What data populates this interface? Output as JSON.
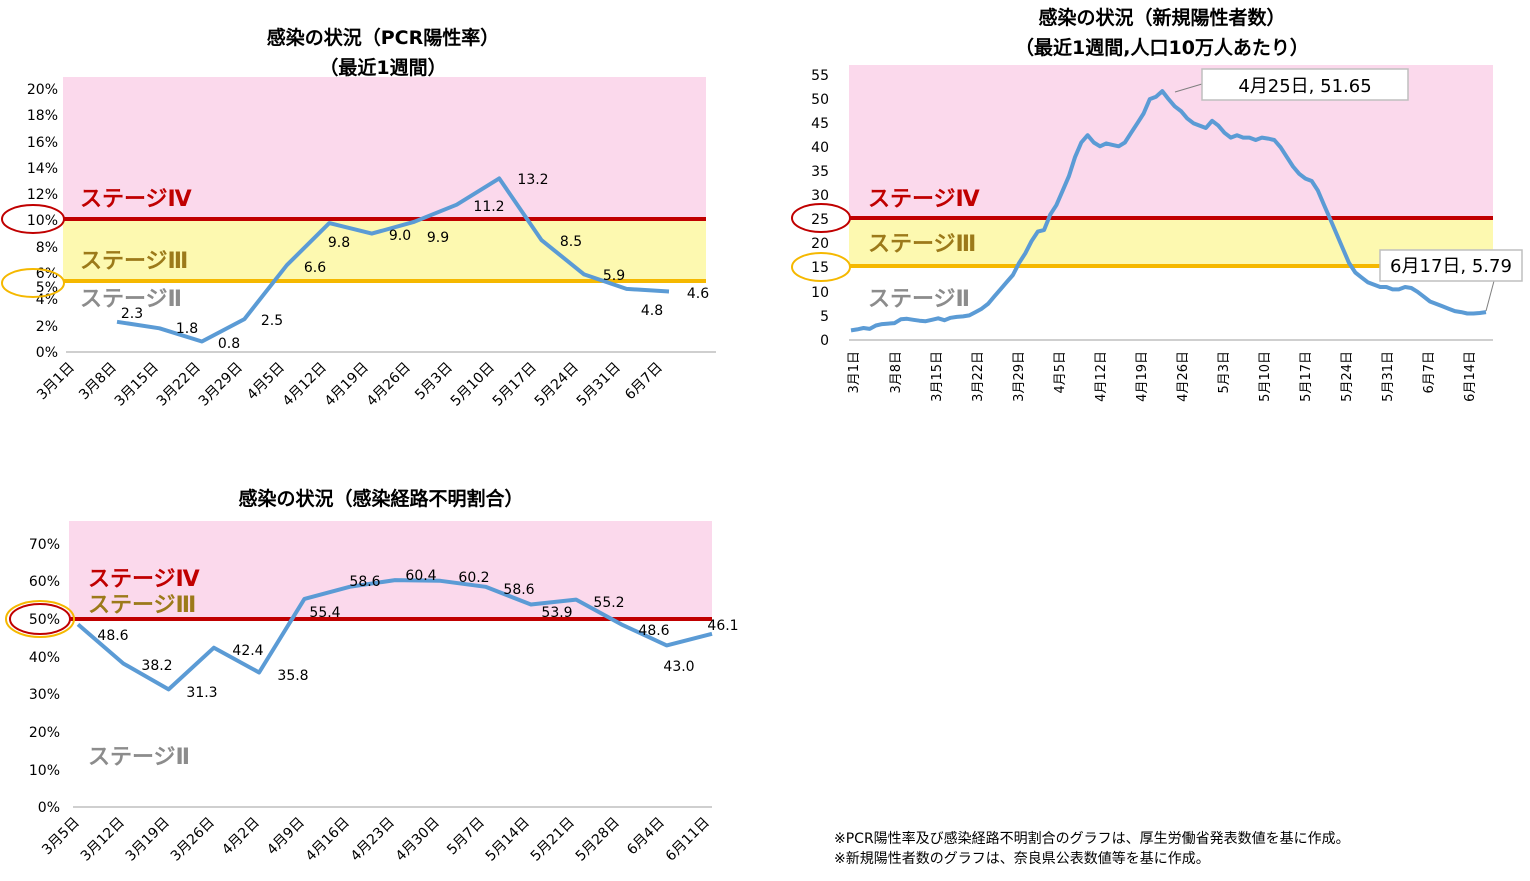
{
  "charts": {
    "pcr": {
      "title_line1": "感染の状況（PCR陽性率）",
      "title_line2": "（最近1週間）",
      "y_ticks": [
        "0%",
        "2%",
        "4%",
        "5%",
        "6%",
        "8%",
        "10%",
        "12%",
        "14%",
        "16%",
        "18%",
        "20%"
      ],
      "x_ticks": [
        "3月1日",
        "3月8日",
        "3月15日",
        "3月22日",
        "3月29日",
        "4月5日",
        "4月12日",
        "4月19日",
        "4月26日",
        "5月3日",
        "5月10日",
        "5月17日",
        "5月24日",
        "5月31日",
        "6月7日"
      ],
      "stage_labels": {
        "s4": "ステージⅣ",
        "s3": "ステージⅢ",
        "s2": "ステージⅡ"
      },
      "data_labels": [
        "2.3",
        "1.8",
        "0.8",
        "2.5",
        "6.6",
        "9.8",
        "9.0",
        "9.9",
        "11.2",
        "13.2",
        "8.5",
        "5.9",
        "4.8",
        "4.6"
      ]
    },
    "cases": {
      "title_line1": "感染の状況（新規陽性者数）",
      "title_line2": "（最近1週間,人口10万人あたり）",
      "y_ticks": [
        "0",
        "5",
        "10",
        "15",
        "20",
        "25",
        "30",
        "35",
        "40",
        "45",
        "50",
        "55"
      ],
      "x_ticks": [
        "3月1日",
        "3月8日",
        "3月15日",
        "3月22日",
        "3月29日",
        "4月5日",
        "4月12日",
        "4月19日",
        "4月26日",
        "5月3日",
        "5月10日",
        "5月17日",
        "5月24日",
        "5月31日",
        "6月7日",
        "6月14日"
      ],
      "stage_labels": {
        "s4": "ステージⅣ",
        "s3": "ステージⅢ",
        "s2": "ステージⅡ"
      },
      "callouts": {
        "peak": "4月25日, 51.65",
        "last": "6月17日, 5.79"
      }
    },
    "unknown": {
      "title": "感染の状況（感染経路不明割合）",
      "y_ticks": [
        "0%",
        "10%",
        "20%",
        "30%",
        "40%",
        "50%",
        "60%",
        "70%"
      ],
      "x_ticks": [
        "3月5日",
        "3月12日",
        "3月19日",
        "3月26日",
        "4月2日",
        "4月9日",
        "4月16日",
        "4月23日",
        "4月30日",
        "5月7日",
        "5月14日",
        "5月21日",
        "5月28日",
        "6月4日",
        "6月11日"
      ],
      "stage_labels": {
        "s4": "ステージⅣ",
        "s3": "ステージⅢ",
        "s2": "ステージⅡ"
      },
      "data_labels": [
        "48.6",
        "38.2",
        "31.3",
        "42.4",
        "35.8",
        "55.4",
        "58.6",
        "60.4",
        "60.2",
        "58.6",
        "53.9",
        "55.2",
        "48.6",
        "43.0",
        "46.1"
      ]
    }
  },
  "footnotes": {
    "line1": "※PCR陽性率及び感染経路不明割合のグラフは、厚生労働省発表数値を基に作成。",
    "line2": "※新規陽性者数のグラフは、奈良県公表数値等を基に作成。"
  },
  "colors": {
    "stage4_band": "#fbd9ec",
    "stage3_band": "#fdf9b0",
    "stage4_line": "#c00000",
    "stage3_line": "#f5b800",
    "stage4_text": "#c00000",
    "stage3_text": "#9c7a1a",
    "stage2_text": "#8c8c8c",
    "series": "#5b9bd5"
  },
  "chart_data": [
    {
      "type": "line",
      "title": "感染の状況（PCR陽性率）（最近1週間）",
      "categories": [
        "3月8日",
        "3月15日",
        "3月22日",
        "3月29日",
        "4月5日",
        "4月12日",
        "4月19日",
        "4月26日",
        "5月3日",
        "5月10日",
        "5月17日",
        "5月24日",
        "5月31日",
        "6月7日"
      ],
      "values": [
        2.3,
        1.8,
        0.8,
        2.5,
        6.6,
        9.8,
        9.0,
        9.9,
        11.2,
        13.2,
        8.5,
        5.9,
        4.8,
        4.6
      ],
      "ylim": [
        0,
        20
      ],
      "thresholds": {
        "stage4": 10,
        "stage3": 5
      },
      "xlabel": "",
      "ylabel": ""
    },
    {
      "type": "line",
      "title": "感染の状況（新規陽性者数）（最近1週間,人口10万人あたり）",
      "x_start": "3月1日",
      "x_end": "6月17日",
      "values": [
        2,
        2.2,
        2.5,
        2.3,
        3,
        3.3,
        3.4,
        3.5,
        4.3,
        4.4,
        4.2,
        4,
        3.9,
        4.2,
        4.5,
        4.1,
        4.6,
        4.8,
        4.9,
        5.1,
        5.8,
        6.5,
        7.5,
        9,
        10.5,
        12,
        13.5,
        16,
        18,
        20.5,
        22.5,
        22.8,
        26,
        28,
        31,
        34,
        38,
        41,
        42.5,
        41,
        40.2,
        40.8,
        40.5,
        40.2,
        41,
        43,
        45,
        47,
        50,
        50.5,
        51.65,
        50,
        48.5,
        47.5,
        46,
        45,
        44.5,
        44,
        45.5,
        44.5,
        43,
        42,
        42.5,
        42,
        42,
        41.5,
        42,
        41.8,
        41.5,
        40,
        38,
        36,
        34.5,
        33.5,
        33,
        31,
        28,
        25,
        22,
        19,
        16,
        14,
        13,
        12,
        11.5,
        11,
        11,
        10.5,
        10.5,
        11,
        10.8,
        10,
        9,
        8,
        7.5,
        7,
        6.5,
        6,
        5.8,
        5.5,
        5.5,
        5.6,
        5.79
      ],
      "ylim": [
        0,
        55
      ],
      "thresholds": {
        "stage4": 25,
        "stage3": 15
      },
      "annotations": [
        {
          "text": "4月25日, 51.65",
          "x": "4月25日",
          "y": 51.65
        },
        {
          "text": "6月17日, 5.79",
          "x": "6月17日",
          "y": 5.79
        }
      ],
      "xlabel": "",
      "ylabel": ""
    },
    {
      "type": "line",
      "title": "感染の状況（感染経路不明割合）",
      "categories": [
        "3月5日",
        "3月12日",
        "3月19日",
        "3月26日",
        "4月2日",
        "4月9日",
        "4月16日",
        "4月23日",
        "4月30日",
        "5月7日",
        "5月14日",
        "5月21日",
        "5月28日",
        "6月4日",
        "6月11日"
      ],
      "values": [
        48.6,
        38.2,
        31.3,
        42.4,
        35.8,
        55.4,
        58.6,
        60.4,
        60.2,
        58.6,
        53.9,
        55.2,
        48.6,
        43.0,
        46.1
      ],
      "ylim": [
        0,
        70
      ],
      "thresholds": {
        "stage4": 50,
        "stage3": 50
      },
      "xlabel": "",
      "ylabel": ""
    }
  ]
}
